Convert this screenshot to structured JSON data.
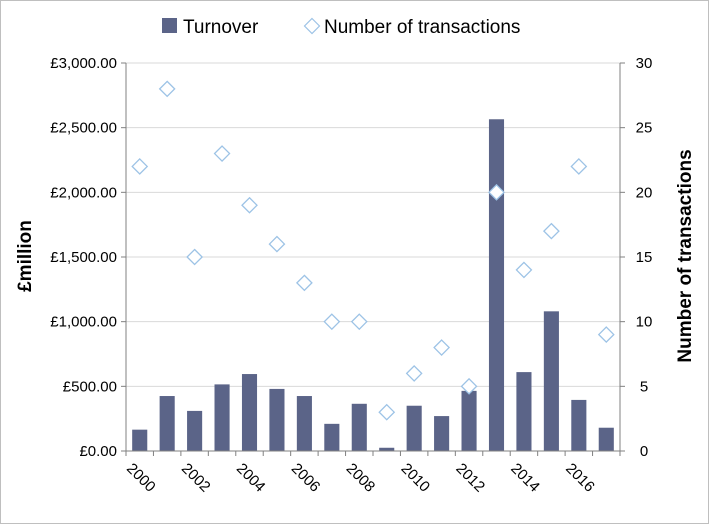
{
  "chart_data": {
    "type": "bar",
    "categories": [
      "2000",
      "2001",
      "2002",
      "2003",
      "2004",
      "2005",
      "2006",
      "2007",
      "2008",
      "2009",
      "2010",
      "2011",
      "2012",
      "2013",
      "2014",
      "2015",
      "2016",
      "2017"
    ],
    "x_tick_labels": [
      "2000",
      "2002",
      "2004",
      "2006",
      "2008",
      "2010",
      "2012",
      "2014",
      "2016"
    ],
    "series": [
      {
        "name": "Turnover",
        "kind": "bar",
        "axis": "left",
        "color": "#5b6488",
        "values": [
          165,
          425,
          310,
          515,
          595,
          480,
          425,
          210,
          365,
          25,
          350,
          270,
          465,
          2565,
          610,
          1080,
          395,
          180
        ]
      },
      {
        "name": "Number of transactions",
        "kind": "scatter",
        "marker": "diamond",
        "axis": "right",
        "color": "#9dc3e6",
        "values": [
          22,
          28,
          15,
          23,
          19,
          16,
          13,
          10,
          10,
          3,
          6,
          8,
          5,
          20,
          14,
          17,
          22,
          9
        ]
      }
    ],
    "ylabel": "£million",
    "ylabel_right": "Number of transactions",
    "ylim": [
      0,
      3000
    ],
    "ylim_right": [
      0,
      30
    ],
    "y_ticks": [
      "£0.00",
      "£500.00",
      "£1,000.00",
      "£1,500.00",
      "£2,000.00",
      "£2,500.00",
      "£3,000.00"
    ],
    "y_ticks_right": [
      "0",
      "5",
      "10",
      "15",
      "20",
      "25",
      "30"
    ],
    "grid": true,
    "legend_position": "top"
  }
}
